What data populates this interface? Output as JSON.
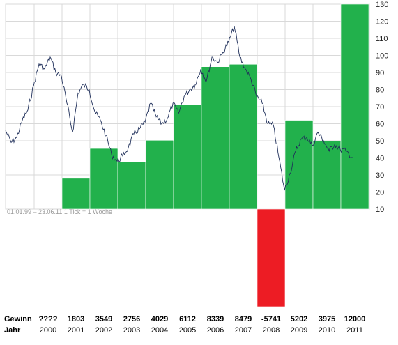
{
  "chart_data": {
    "type": "bar",
    "caption": "01.01.99 – 23.06.11   1 Tick = 1 Woche",
    "y_ticks": [
      10,
      20,
      30,
      40,
      50,
      60,
      70,
      80,
      90,
      100,
      110,
      120,
      130
    ],
    "ylim": [
      10,
      130
    ],
    "grid": true,
    "colors": {
      "positive": "#22b14c",
      "negative": "#ed1c24",
      "line": "#1f2f5a",
      "grid": "#d9d9d9"
    },
    "table": {
      "gain_label": "Gewinn",
      "year_label": "Jahr",
      "columns": [
        {
          "year": "2000",
          "gain_text": "????",
          "gain": null
        },
        {
          "year": "2001",
          "gain_text": "1803",
          "gain": 1803
        },
        {
          "year": "2002",
          "gain_text": "3549",
          "gain": 3549
        },
        {
          "year": "2003",
          "gain_text": "2756",
          "gain": 2756
        },
        {
          "year": "2004",
          "gain_text": "4029",
          "gain": 4029
        },
        {
          "year": "2005",
          "gain_text": "6112",
          "gain": 6112
        },
        {
          "year": "2006",
          "gain_text": "8339",
          "gain": 8339
        },
        {
          "year": "2007",
          "gain_text": "8479",
          "gain": 8479
        },
        {
          "year": "2008",
          "gain_text": "-5741",
          "gain": -5741
        },
        {
          "year": "2009",
          "gain_text": "5202",
          "gain": 5202
        },
        {
          "year": "2010",
          "gain_text": "3975",
          "gain": 3975
        },
        {
          "year": "2011",
          "gain_text": "12000",
          "gain": 12000
        }
      ]
    },
    "price_series": {
      "x": [
        1999.0,
        1999.2,
        1999.4,
        1999.6,
        1999.8,
        2000.0,
        2000.2,
        2000.4,
        2000.6,
        2000.8,
        2001.0,
        2001.2,
        2001.4,
        2001.6,
        2001.8,
        2002.0,
        2002.2,
        2002.4,
        2002.6,
        2002.8,
        2003.0,
        2003.2,
        2003.4,
        2003.6,
        2003.8,
        2004.0,
        2004.2,
        2004.4,
        2004.6,
        2004.8,
        2005.0,
        2005.2,
        2005.4,
        2005.6,
        2005.8,
        2006.0,
        2006.2,
        2006.4,
        2006.6,
        2006.8,
        2007.0,
        2007.2,
        2007.4,
        2007.6,
        2007.8,
        2008.0,
        2008.2,
        2008.4,
        2008.6,
        2008.8,
        2009.0,
        2009.2,
        2009.4,
        2009.6,
        2009.8,
        2010.0,
        2010.2,
        2010.4,
        2010.6,
        2010.8,
        2011.0,
        2011.2,
        2011.47
      ],
      "y": [
        56,
        49,
        52,
        62,
        68,
        82,
        95,
        92,
        99,
        90,
        88,
        72,
        55,
        78,
        83,
        80,
        67,
        62,
        53,
        42,
        38,
        41,
        46,
        54,
        57,
        61,
        72,
        64,
        60,
        63,
        72,
        66,
        76,
        80,
        83,
        92,
        85,
        99,
        96,
        102,
        108,
        117,
        99,
        92,
        86,
        76,
        72,
        60,
        59,
        40,
        21,
        31,
        44,
        51,
        52,
        47,
        55,
        50,
        44,
        48,
        45,
        44,
        40
      ]
    }
  }
}
